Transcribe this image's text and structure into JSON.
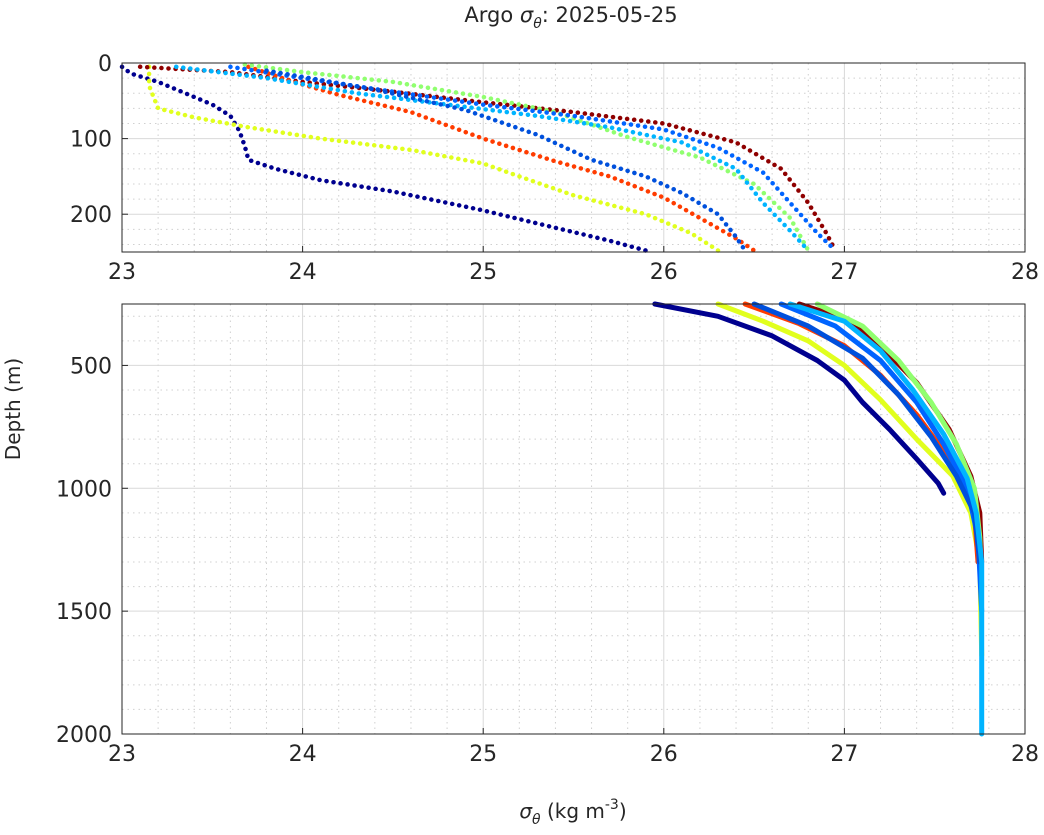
{
  "title_prefix": "Argo ",
  "title_symbol": "σ",
  "title_sub": "θ",
  "title_suffix": ": 2025-05-25",
  "chart_data": [
    {
      "type": "scatter",
      "panel": "top",
      "xlim": [
        23,
        28
      ],
      "ylim": [
        0,
        250
      ],
      "y_reversed": true,
      "grid": true,
      "x_ticks": [
        "23",
        "24",
        "25",
        "26",
        "27",
        "28"
      ],
      "y_ticks": [
        "0",
        "100",
        "200"
      ],
      "series": [
        {
          "color": "#00008f",
          "points": [
            [
              23.0,
              5
            ],
            [
              23.05,
              14
            ],
            [
              23.2,
              25
            ],
            [
              23.35,
              40
            ],
            [
              23.5,
              55
            ],
            [
              23.6,
              70
            ],
            [
              23.65,
              90
            ],
            [
              23.68,
              110
            ],
            [
              23.7,
              128
            ],
            [
              23.85,
              140
            ],
            [
              24.1,
              155
            ],
            [
              24.5,
              170
            ],
            [
              25.0,
              195
            ],
            [
              25.4,
              218
            ],
            [
              25.7,
              235
            ],
            [
              25.9,
              248
            ]
          ]
        },
        {
          "color": "#e1ff1e",
          "points": [
            [
              23.15,
              5
            ],
            [
              23.15,
              30
            ],
            [
              23.2,
              60
            ],
            [
              23.4,
              72
            ],
            [
              23.7,
              85
            ],
            [
              24.1,
              100
            ],
            [
              24.6,
              115
            ],
            [
              25.0,
              133
            ],
            [
              25.2,
              150
            ],
            [
              25.5,
              175
            ],
            [
              25.9,
              200
            ],
            [
              26.15,
              225
            ],
            [
              26.3,
              248
            ]
          ]
        },
        {
          "color": "#8f0000",
          "points": [
            [
              23.1,
              5
            ],
            [
              23.6,
              12
            ],
            [
              24.0,
              25
            ],
            [
              24.5,
              38
            ],
            [
              25.0,
              52
            ],
            [
              25.5,
              65
            ],
            [
              26.0,
              80
            ],
            [
              26.4,
              105
            ],
            [
              26.65,
              140
            ],
            [
              26.8,
              185
            ],
            [
              26.9,
              225
            ],
            [
              26.95,
              248
            ]
          ]
        },
        {
          "color": "#ff3c00",
          "points": [
            [
              23.7,
              5
            ],
            [
              23.95,
              25
            ],
            [
              24.2,
              42
            ],
            [
              24.6,
              65
            ],
            [
              25.0,
              100
            ],
            [
              25.4,
              130
            ],
            [
              25.7,
              150
            ],
            [
              26.0,
              178
            ],
            [
              26.2,
              205
            ],
            [
              26.4,
              232
            ],
            [
              26.5,
              248
            ]
          ]
        },
        {
          "color": "#90ff6f",
          "points": [
            [
              23.68,
              2
            ],
            [
              24.0,
              12
            ],
            [
              24.5,
              25
            ],
            [
              25.0,
              45
            ],
            [
              25.4,
              65
            ],
            [
              25.8,
              98
            ],
            [
              26.2,
              125
            ],
            [
              26.5,
              160
            ],
            [
              26.7,
              205
            ],
            [
              26.8,
              248
            ]
          ]
        },
        {
          "color": "#00b4ff",
          "points": [
            [
              23.3,
              5
            ],
            [
              23.8,
              20
            ],
            [
              24.3,
              40
            ],
            [
              24.8,
              55
            ],
            [
              25.3,
              70
            ],
            [
              25.7,
              85
            ],
            [
              26.1,
              105
            ],
            [
              26.4,
              140
            ],
            [
              26.55,
              185
            ],
            [
              26.7,
              222
            ],
            [
              26.8,
              248
            ]
          ]
        },
        {
          "color": "#0064ff",
          "points": [
            [
              23.6,
              5
            ],
            [
              24.0,
              20
            ],
            [
              24.5,
              38
            ],
            [
              25.0,
              55
            ],
            [
              25.5,
              70
            ],
            [
              26.0,
              88
            ],
            [
              26.3,
              112
            ],
            [
              26.55,
              145
            ],
            [
              26.7,
              185
            ],
            [
              26.85,
              225
            ],
            [
              26.95,
              248
            ]
          ]
        },
        {
          "color": "#0050dc",
          "points": [
            [
              23.8,
              10
            ],
            [
              24.4,
              35
            ],
            [
              24.9,
              62
            ],
            [
              25.3,
              95
            ],
            [
              25.6,
              128
            ],
            [
              25.9,
              150
            ],
            [
              26.1,
              172
            ],
            [
              26.3,
              200
            ],
            [
              26.4,
              230
            ],
            [
              26.45,
              248
            ]
          ]
        }
      ]
    },
    {
      "type": "line",
      "panel": "bottom",
      "xlim": [
        23,
        28
      ],
      "ylim": [
        250,
        2000
      ],
      "y_reversed": true,
      "grid": true,
      "xlabel_symbol": "σ",
      "xlabel_sub": "θ",
      "xlabel_text": " (kg m",
      "xlabel_sup": "-3",
      "xlabel_end": ")",
      "ylabel": "Depth (m)",
      "x_ticks": [
        "23",
        "24",
        "25",
        "26",
        "27",
        "28"
      ],
      "y_ticks": [
        "500",
        "1000",
        "1500",
        "2000"
      ],
      "series": [
        {
          "color": "#00008f",
          "points": [
            [
              25.95,
              250
            ],
            [
              26.3,
              300
            ],
            [
              26.6,
              380
            ],
            [
              26.85,
              480
            ],
            [
              27.0,
              560
            ],
            [
              27.1,
              650
            ],
            [
              27.25,
              760
            ],
            [
              27.4,
              880
            ],
            [
              27.52,
              980
            ],
            [
              27.55,
              1020
            ]
          ]
        },
        {
          "color": "#e1ff1e",
          "points": [
            [
              26.3,
              250
            ],
            [
              26.55,
              320
            ],
            [
              26.8,
              400
            ],
            [
              27.0,
              500
            ],
            [
              27.2,
              640
            ],
            [
              27.4,
              800
            ],
            [
              27.6,
              950
            ],
            [
              27.7,
              1100
            ],
            [
              27.75,
              1300
            ],
            [
              27.76,
              1680
            ]
          ]
        },
        {
          "color": "#ff3c00",
          "points": [
            [
              26.45,
              250
            ],
            [
              26.75,
              330
            ],
            [
              27.0,
              420
            ],
            [
              27.2,
              540
            ],
            [
              27.4,
              700
            ],
            [
              27.55,
              850
            ],
            [
              27.68,
              980
            ],
            [
              27.72,
              1100
            ],
            [
              27.74,
              1300
            ]
          ]
        },
        {
          "color": "#8f0000",
          "points": [
            [
              26.75,
              250
            ],
            [
              27.0,
              310
            ],
            [
              27.2,
              420
            ],
            [
              27.4,
              570
            ],
            [
              27.58,
              760
            ],
            [
              27.7,
              950
            ],
            [
              27.75,
              1100
            ],
            [
              27.76,
              1300
            ]
          ]
        },
        {
          "color": "#90ff6f",
          "points": [
            [
              26.85,
              250
            ],
            [
              27.1,
              340
            ],
            [
              27.3,
              480
            ],
            [
              27.48,
              650
            ],
            [
              27.62,
              820
            ],
            [
              27.72,
              1000
            ],
            [
              27.75,
              1200
            ],
            [
              27.76,
              1400
            ]
          ]
        },
        {
          "color": "#0064ff",
          "points": [
            [
              26.65,
              250
            ],
            [
              26.95,
              340
            ],
            [
              27.2,
              480
            ],
            [
              27.4,
              650
            ],
            [
              27.55,
              820
            ],
            [
              27.68,
              1000
            ],
            [
              27.74,
              1200
            ],
            [
              27.76,
              1500
            ]
          ]
        },
        {
          "color": "#0050dc",
          "points": [
            [
              26.5,
              250
            ],
            [
              26.8,
              340
            ],
            [
              27.1,
              470
            ],
            [
              27.3,
              620
            ],
            [
              27.48,
              790
            ],
            [
              27.62,
              950
            ],
            [
              27.72,
              1100
            ],
            [
              27.75,
              1300
            ]
          ]
        },
        {
          "color": "#00b4ff",
          "points": [
            [
              26.7,
              250
            ],
            [
              27.0,
              320
            ],
            [
              27.2,
              440
            ],
            [
              27.38,
              600
            ],
            [
              27.55,
              780
            ],
            [
              27.68,
              960
            ],
            [
              27.73,
              1100
            ],
            [
              27.76,
              1300
            ],
            [
              27.76,
              1600
            ],
            [
              27.76,
              2000
            ]
          ]
        }
      ]
    }
  ]
}
